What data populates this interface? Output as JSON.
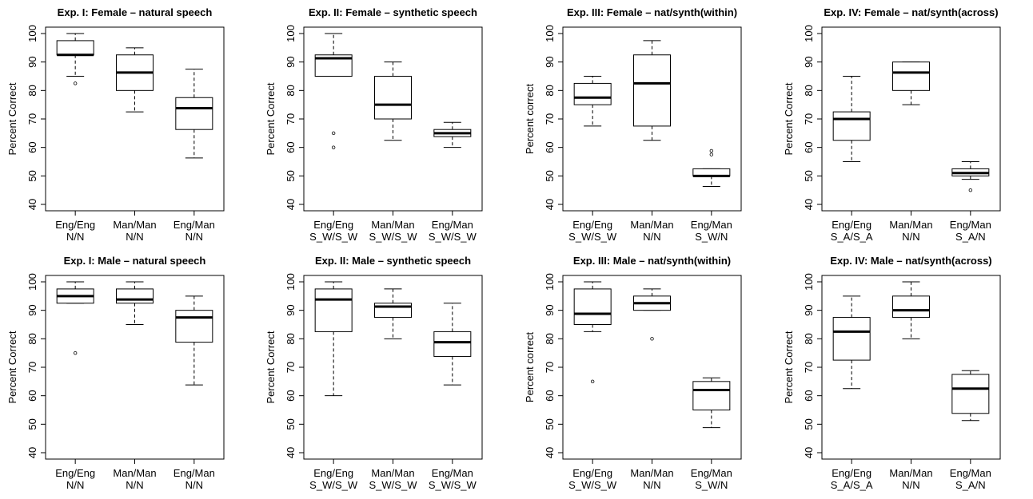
{
  "chart_data": [
    {
      "type": "box",
      "title": "Exp. I: Female – natural speech",
      "ylabel": "Percent Correct",
      "ylim": [
        40,
        100
      ],
      "yticks": [
        40,
        50,
        60,
        70,
        80,
        90,
        100
      ],
      "categories": [
        {
          "line1": "Eng/Eng",
          "line2": "N/N"
        },
        {
          "line1": "Man/Man",
          "line2": "N/N"
        },
        {
          "line1": "Eng/Man",
          "line2": "N/N"
        }
      ],
      "boxes": [
        {
          "min": 85,
          "q1": 92.5,
          "median": 92.5,
          "q3": 97.5,
          "max": 100,
          "outliers": [
            82.5
          ]
        },
        {
          "min": 72.5,
          "q1": 80,
          "median": 86.3,
          "q3": 92.5,
          "max": 95,
          "outliers": []
        },
        {
          "min": 56.3,
          "q1": 66.3,
          "median": 73.8,
          "q3": 77.5,
          "max": 87.5,
          "outliers": []
        }
      ]
    },
    {
      "type": "box",
      "title": "Exp. II: Female – synthetic speech",
      "ylabel": "Percent Correct",
      "ylim": [
        40,
        100
      ],
      "yticks": [
        40,
        50,
        60,
        70,
        80,
        90,
        100
      ],
      "categories": [
        {
          "line1": "Eng/Eng",
          "line2": "S_W/S_W"
        },
        {
          "line1": "Man/Man",
          "line2": "S_W/S_W"
        },
        {
          "line1": "Eng/Man",
          "line2": "S_W/S_W"
        }
      ],
      "boxes": [
        {
          "min": 85,
          "q1": 85,
          "median": 91.3,
          "q3": 92.5,
          "max": 100,
          "outliers": [
            65,
            60
          ]
        },
        {
          "min": 62.5,
          "q1": 70,
          "median": 75,
          "q3": 85,
          "max": 90,
          "outliers": []
        },
        {
          "min": 60,
          "q1": 63.8,
          "median": 65,
          "q3": 66.3,
          "max": 68.8,
          "outliers": []
        }
      ]
    },
    {
      "type": "box",
      "title": "Exp. III: Female – nat/synth(within)",
      "ylabel": "Percent correct",
      "ylim": [
        40,
        100
      ],
      "yticks": [
        40,
        50,
        60,
        70,
        80,
        90,
        100
      ],
      "categories": [
        {
          "line1": "Eng/Eng",
          "line2": "S_W/S_W"
        },
        {
          "line1": "Man/Man",
          "line2": "N/N"
        },
        {
          "line1": "Eng/Man",
          "line2": "S_W/N"
        }
      ],
      "boxes": [
        {
          "min": 67.5,
          "q1": 75,
          "median": 77.5,
          "q3": 82.5,
          "max": 85,
          "outliers": []
        },
        {
          "min": 62.5,
          "q1": 67.5,
          "median": 82.5,
          "q3": 92.5,
          "max": 97.5,
          "outliers": []
        },
        {
          "min": 46.3,
          "q1": 50,
          "median": 50,
          "q3": 52.5,
          "max": 52.5,
          "outliers": [
            57.5,
            58.8
          ]
        }
      ]
    },
    {
      "type": "box",
      "title": "Exp. IV: Female – nat/synth(across)",
      "ylabel": "Percent Correct",
      "ylim": [
        40,
        100
      ],
      "yticks": [
        40,
        50,
        60,
        70,
        80,
        90,
        100
      ],
      "categories": [
        {
          "line1": "Eng/Eng",
          "line2": "S_A/S_A"
        },
        {
          "line1": "Man/Man",
          "line2": "N/N"
        },
        {
          "line1": "Eng/Man",
          "line2": "S_A/N"
        }
      ],
      "boxes": [
        {
          "min": 55,
          "q1": 62.5,
          "median": 70,
          "q3": 72.5,
          "max": 85,
          "outliers": []
        },
        {
          "min": 75,
          "q1": 80,
          "median": 86.3,
          "q3": 90,
          "max": 90,
          "outliers": []
        },
        {
          "min": 48.8,
          "q1": 50,
          "median": 51,
          "q3": 52.5,
          "max": 55,
          "outliers": [
            45
          ]
        }
      ]
    },
    {
      "type": "box",
      "title": "Exp. I: Male – natural speech",
      "ylabel": "Percent Correct",
      "ylim": [
        40,
        100
      ],
      "yticks": [
        40,
        50,
        60,
        70,
        80,
        90,
        100
      ],
      "categories": [
        {
          "line1": "Eng/Eng",
          "line2": "N/N"
        },
        {
          "line1": "Man/Man",
          "line2": "N/N"
        },
        {
          "line1": "Eng/Man",
          "line2": "N/N"
        }
      ],
      "boxes": [
        {
          "min": 92.5,
          "q1": 92.5,
          "median": 95,
          "q3": 97.5,
          "max": 100,
          "outliers": [
            75
          ]
        },
        {
          "min": 85,
          "q1": 92.5,
          "median": 93.8,
          "q3": 97.5,
          "max": 100,
          "outliers": []
        },
        {
          "min": 63.8,
          "q1": 78.8,
          "median": 87.5,
          "q3": 90,
          "max": 95,
          "outliers": []
        }
      ]
    },
    {
      "type": "box",
      "title": "Exp. II: Male – synthetic speech",
      "ylabel": "Percent Correct",
      "ylim": [
        40,
        100
      ],
      "yticks": [
        40,
        50,
        60,
        70,
        80,
        90,
        100
      ],
      "categories": [
        {
          "line1": "Eng/Eng",
          "line2": "S_W/S_W"
        },
        {
          "line1": "Man/Man",
          "line2": "S_W/S_W"
        },
        {
          "line1": "Eng/Man",
          "line2": "S_W/S_W"
        }
      ],
      "boxes": [
        {
          "min": 60,
          "q1": 82.5,
          "median": 93.8,
          "q3": 97.5,
          "max": 100,
          "outliers": []
        },
        {
          "min": 80,
          "q1": 87.5,
          "median": 91.3,
          "q3": 92.5,
          "max": 97.5,
          "outliers": []
        },
        {
          "min": 63.8,
          "q1": 73.8,
          "median": 78.8,
          "q3": 82.5,
          "max": 92.5,
          "outliers": []
        }
      ]
    },
    {
      "type": "box",
      "title": "Exp. III: Male – nat/synth(within)",
      "ylabel": "Percent correct",
      "ylim": [
        40,
        100
      ],
      "yticks": [
        40,
        50,
        60,
        70,
        80,
        90,
        100
      ],
      "categories": [
        {
          "line1": "Eng/Eng",
          "line2": "S_W/S_W"
        },
        {
          "line1": "Man/Man",
          "line2": "N/N"
        },
        {
          "line1": "Eng/Man",
          "line2": "S_W/N"
        }
      ],
      "boxes": [
        {
          "min": 82.5,
          "q1": 85,
          "median": 88.8,
          "q3": 97.5,
          "max": 100,
          "outliers": [
            65
          ]
        },
        {
          "min": 90,
          "q1": 90,
          "median": 92.5,
          "q3": 95,
          "max": 97.5,
          "outliers": [
            80
          ]
        },
        {
          "min": 48.8,
          "q1": 55,
          "median": 62,
          "q3": 65,
          "max": 66.3,
          "outliers": []
        }
      ]
    },
    {
      "type": "box",
      "title": "Exp. IV: Male – nat/synth(across)",
      "ylabel": "Percent Correct",
      "ylim": [
        40,
        100
      ],
      "yticks": [
        40,
        50,
        60,
        70,
        80,
        90,
        100
      ],
      "categories": [
        {
          "line1": "Eng/Eng",
          "line2": "S_A/S_A"
        },
        {
          "line1": "Man/Man",
          "line2": "N/N"
        },
        {
          "line1": "Eng/Man",
          "line2": "S_A/N"
        }
      ],
      "boxes": [
        {
          "min": 62.5,
          "q1": 72.5,
          "median": 82.5,
          "q3": 87.5,
          "max": 95,
          "outliers": []
        },
        {
          "min": 80,
          "q1": 87.5,
          "median": 90,
          "q3": 95,
          "max": 100,
          "outliers": []
        },
        {
          "min": 51.3,
          "q1": 53.8,
          "median": 62.5,
          "q3": 67.5,
          "max": 68.8,
          "outliers": []
        }
      ]
    }
  ]
}
